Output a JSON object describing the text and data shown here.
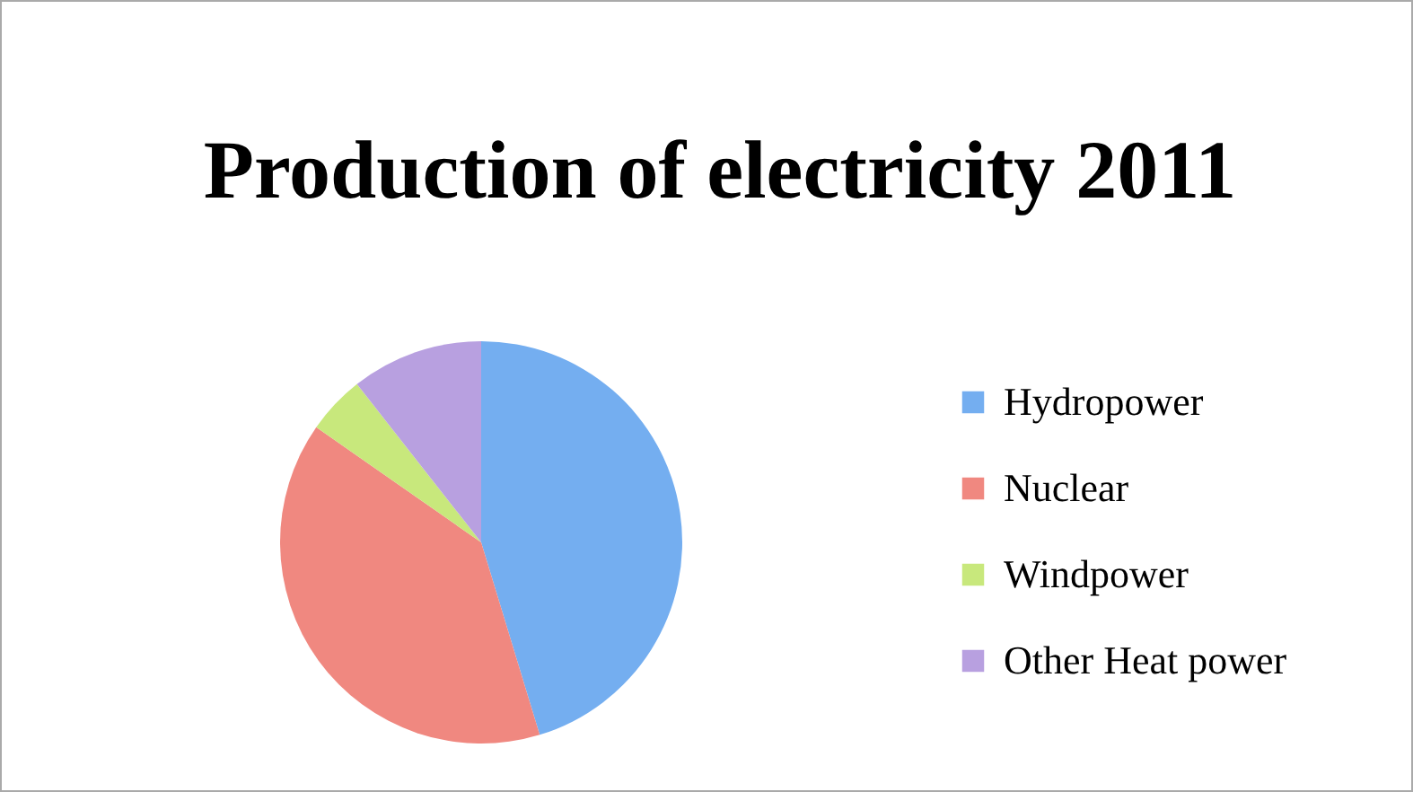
{
  "chart_data": {
    "type": "pie",
    "title": "Production of electricity 2011",
    "categories": [
      "Hydropower",
      "Nuclear",
      "Windpower",
      "Other Heat power"
    ],
    "values": [
      45.3,
      39.4,
      4.7,
      10.6
    ],
    "colors": [
      "#74aef0",
      "#f08880",
      "#c8e87c",
      "#b8a0e0"
    ],
    "legend": "right"
  }
}
